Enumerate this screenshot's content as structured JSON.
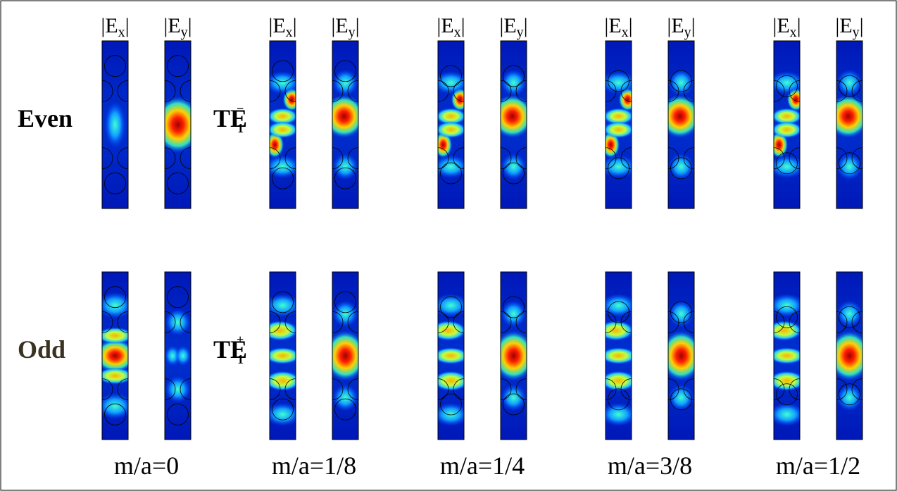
{
  "rows": [
    "Even",
    "Odd"
  ],
  "modes": [
    {
      "base": "TE",
      "sub": "1",
      "sup": "−"
    },
    {
      "base": "TE",
      "sub": "1",
      "sup": "+"
    }
  ],
  "groups": [
    {
      "headers": [
        {
          "prefix": "|E",
          "sub": "x",
          "suffix": "|"
        },
        {
          "prefix": "|E",
          "sub": "y",
          "suffix": "|"
        }
      ],
      "label": "m/a=0"
    },
    {
      "headers": [
        {
          "prefix": "|E",
          "sub": "x",
          "suffix": "|"
        },
        {
          "prefix": "|E",
          "sub": "y",
          "suffix": "|"
        }
      ],
      "label": "m/a=1/8"
    },
    {
      "headers": [
        {
          "prefix": "|E",
          "sub": "x",
          "suffix": "|"
        },
        {
          "prefix": "|E",
          "sub": "y",
          "suffix": "|"
        }
      ],
      "label": "m/a=1/4"
    },
    {
      "headers": [
        {
          "prefix": "|E",
          "sub": "x",
          "suffix": "|"
        },
        {
          "prefix": "|E",
          "sub": "y",
          "suffix": "|"
        }
      ],
      "label": "m/a=3/8"
    },
    {
      "headers": [
        {
          "prefix": "|E",
          "sub": "x",
          "suffix": "|"
        },
        {
          "prefix": "|E",
          "sub": "y",
          "suffix": "|"
        }
      ],
      "label": "m/a=1/2"
    }
  ]
}
